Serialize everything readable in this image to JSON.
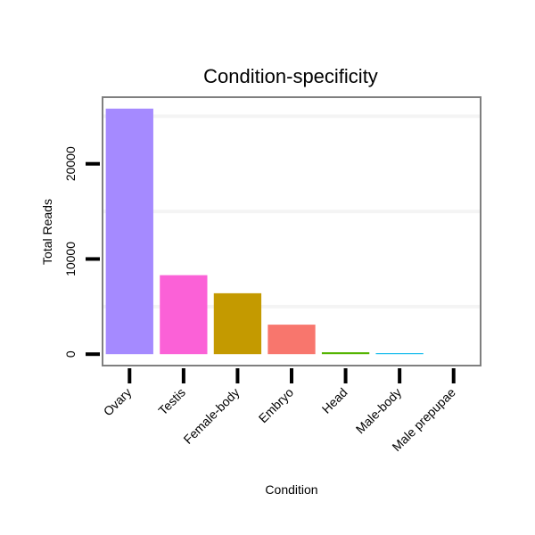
{
  "chart_data": {
    "type": "bar",
    "title": "Condition-specificity",
    "xlabel": "Condition",
    "ylabel": "Total Reads",
    "categories": [
      "Ovary",
      "Testis",
      "Female-body",
      "Embryo",
      "Head",
      "Male-body",
      "Male prepupae"
    ],
    "values": [
      25800,
      8300,
      6400,
      3100,
      200,
      100,
      0
    ],
    "colors": [
      "#A58AFF",
      "#FB61D7",
      "#C49A00",
      "#F8766D",
      "#53B400",
      "#00B6EB",
      "#00C094"
    ],
    "yticks": [
      0,
      10000,
      20000
    ],
    "ylim": [
      -1200,
      27000
    ],
    "grid": true,
    "legend": "none"
  }
}
